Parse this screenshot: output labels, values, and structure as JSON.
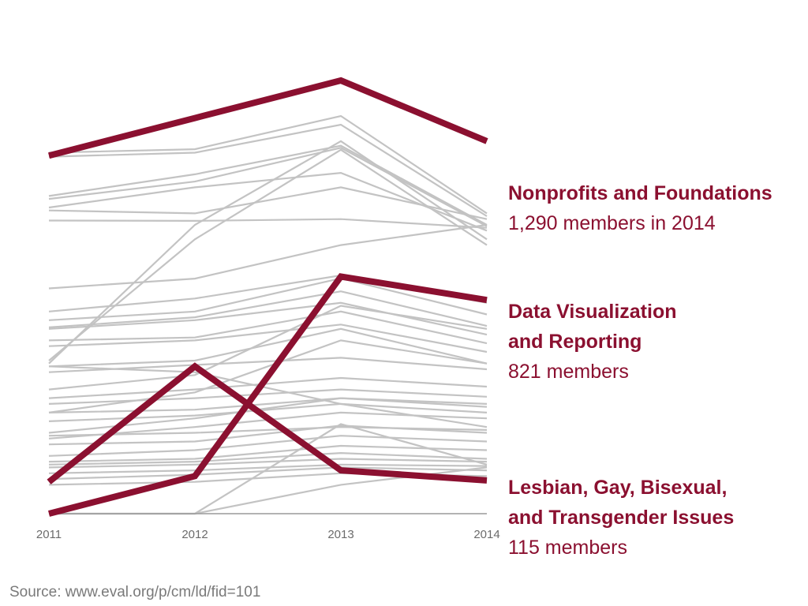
{
  "chart_data": {
    "type": "line",
    "x": [
      "2011",
      "2012",
      "2013",
      "2014"
    ],
    "ylim": [
      0,
      1400
    ],
    "grid": false,
    "legend": "none",
    "colors": {
      "highlight": "#8b1030",
      "background": "#c3c3c3",
      "axis": "#9a9a9a"
    },
    "highlighted": [
      {
        "values": [
          1240,
          1370,
          1500,
          1290
        ]
      },
      {
        "values": [
          0,
          130,
          821,
          740
        ]
      },
      {
        "values": [
          110,
          510,
          150,
          115
        ]
      }
    ],
    "background_series": [
      [
        1250,
        1262,
        1377,
        1040
      ],
      [
        1236,
        1250,
        1347,
        1030
      ],
      [
        1100,
        1175,
        1274,
        1000
      ],
      [
        1090,
        1150,
        1267,
        995
      ],
      [
        1060,
        1130,
        1180,
        980
      ],
      [
        1050,
        1040,
        1130,
        1020
      ],
      [
        1015,
        1014,
        1020,
        990
      ],
      [
        780,
        814,
        930,
        1000
      ],
      [
        700,
        745,
        825,
        730
      ],
      [
        670,
        700,
        815,
        690
      ],
      [
        645,
        680,
        770,
        650
      ],
      [
        640,
        670,
        730,
        620
      ],
      [
        600,
        610,
        700,
        590
      ],
      [
        580,
        600,
        655,
        560
      ],
      [
        510,
        530,
        640,
        520
      ],
      [
        490,
        515,
        540,
        500
      ],
      [
        400,
        430,
        470,
        440
      ],
      [
        380,
        400,
        430,
        405
      ],
      [
        350,
        360,
        400,
        380
      ],
      [
        320,
        340,
        380,
        350
      ],
      [
        270,
        280,
        300,
        290
      ],
      [
        240,
        250,
        305,
        280
      ],
      [
        200,
        220,
        270,
        250
      ],
      [
        180,
        190,
        235,
        220
      ],
      [
        170,
        180,
        210,
        190
      ],
      [
        160,
        170,
        190,
        180
      ],
      [
        140,
        150,
        170,
        165
      ],
      [
        120,
        135,
        160,
        150
      ],
      [
        100,
        110,
        140,
        130
      ],
      [
        520,
        1000,
        1290,
        950
      ],
      [
        530,
        950,
        1260,
        930
      ],
      [
        0,
        0,
        310,
        170
      ],
      [
        0,
        0,
        100,
        160
      ],
      [
        510,
        490,
        380,
        300
      ],
      [
        430,
        480,
        720,
        640
      ],
      [
        350,
        420,
        600,
        520
      ],
      [
        280,
        330,
        400,
        370
      ],
      [
        260,
        300,
        350,
        330
      ]
    ]
  },
  "labels": {
    "nonprofits": {
      "line1": "Nonprofits and Foundations",
      "line2": "1,290 members in 2014"
    },
    "dataviz": {
      "line1": "Data Visualization",
      "line2": "and Reporting",
      "line3": "821 members"
    },
    "lgbt": {
      "line1": "Lesbian, Gay, Bisexual,",
      "line2": "and Transgender Issues",
      "line3": "115 members"
    }
  },
  "source": "Source: www.eval.org/p/cm/ld/fid=101"
}
